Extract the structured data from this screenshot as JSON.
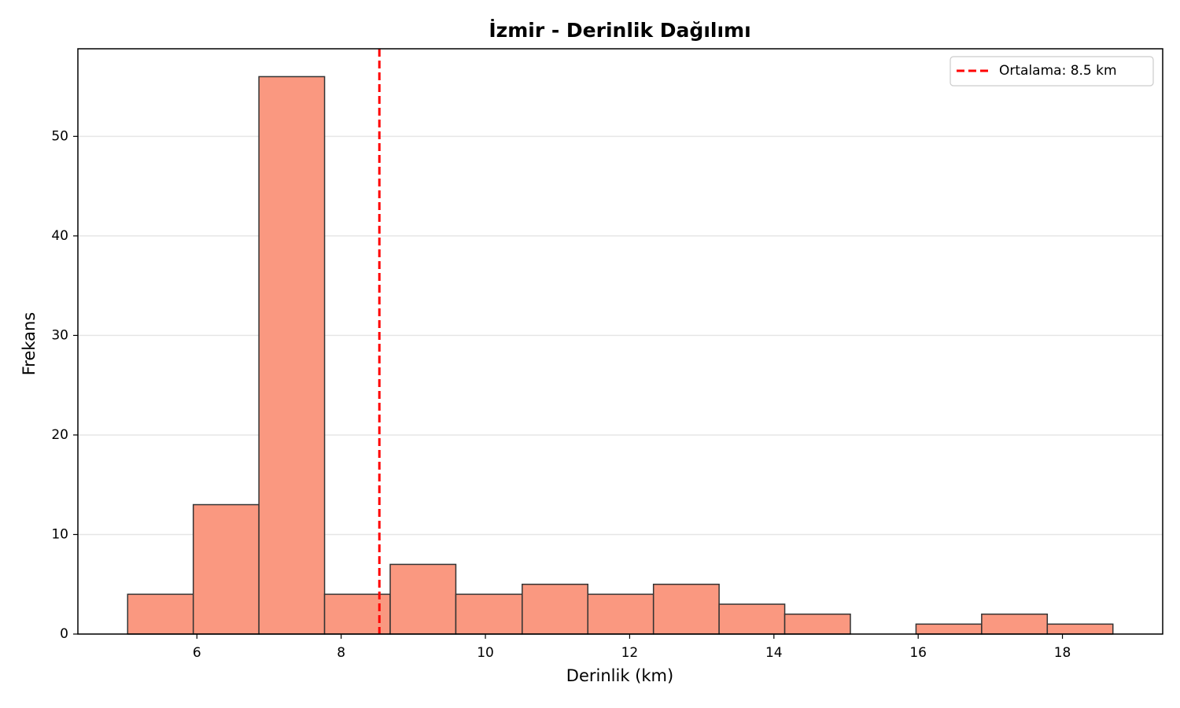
{
  "chart_data": {
    "type": "histogram",
    "title": "İzmir - Derinlik Dağılımı",
    "x_label": "Derinlik (km)",
    "y_label": "Frekans",
    "bins": [
      5.04,
      5.95,
      6.86,
      7.77,
      8.68,
      9.59,
      10.51,
      11.42,
      12.33,
      13.24,
      14.15,
      15.06,
      15.97,
      16.88,
      17.79,
      18.7
    ],
    "values": [
      4,
      13,
      56,
      4,
      7,
      4,
      5,
      4,
      5,
      3,
      2,
      0,
      1,
      2,
      1
    ],
    "color": "#fa9880",
    "edge_color": "#333333",
    "xlim": [
      4.35,
      19.39
    ],
    "ylim": [
      0,
      58.8
    ],
    "xticks": [
      6,
      8,
      10,
      12,
      14,
      16,
      18
    ],
    "yticks": [
      0,
      10,
      20,
      30,
      40,
      50
    ],
    "grid": "y",
    "legend": "upper right",
    "mean_line": {
      "value": 8.53,
      "label": "Ortalama: 8.5 km",
      "color": "#ff0000"
    }
  }
}
